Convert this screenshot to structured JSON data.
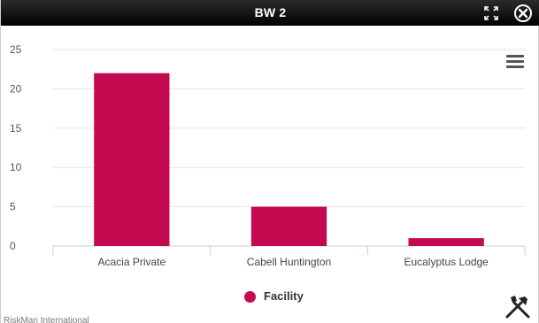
{
  "window": {
    "title": "BW 2",
    "expand_icon": "expand-icon",
    "close_icon": "close-icon"
  },
  "toolbar": {
    "menu_icon": "hamburger-menu-icon",
    "tools_icon": "tools-icon"
  },
  "colors": {
    "bar": "#c40a4f",
    "titlebar": "#000000",
    "grid": "#e6e6e6"
  },
  "chart_data": {
    "type": "bar",
    "categories": [
      "Acacia Private",
      "Cabell Huntington",
      "Eucalyptus Lodge"
    ],
    "series": [
      {
        "name": "Facility",
        "values": [
          22,
          5,
          1
        ]
      }
    ],
    "ylim": [
      0,
      25
    ],
    "yticks": [
      0,
      5,
      10,
      15,
      20,
      25
    ],
    "grid": true,
    "legend_position": "bottom-center"
  },
  "legend": {
    "label": "Facility"
  },
  "credits": "RiskMan International"
}
